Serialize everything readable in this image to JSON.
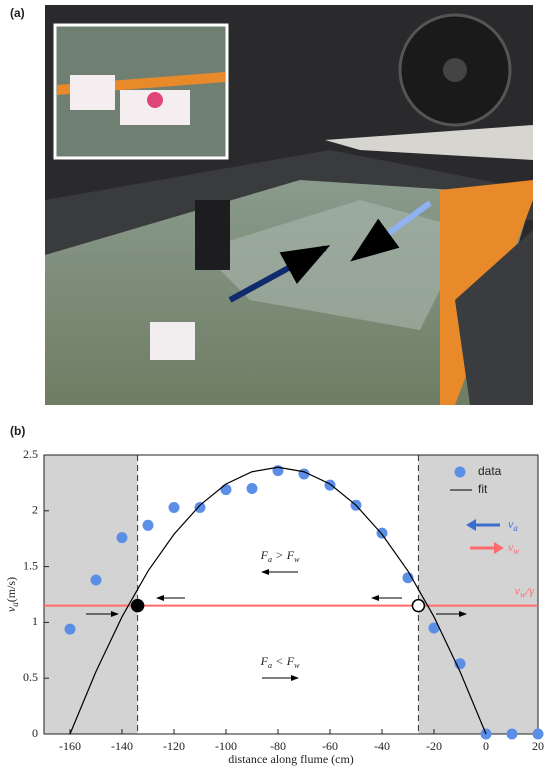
{
  "panel_labels": [
    "(a)",
    "(b)"
  ],
  "chart_data": {
    "type": "scatter",
    "x_label": "distance along flume (cm)",
    "y_label": {
      "symbol": "v",
      "sub": "a",
      "unit": "(m/s)"
    },
    "xlim": [
      -170,
      20
    ],
    "xticks": [
      -160,
      -140,
      -120,
      -100,
      -80,
      -60,
      -40,
      -20,
      0,
      20
    ],
    "ylim": [
      0,
      2.5
    ],
    "yticks": [
      0,
      0.5,
      1,
      1.5,
      2,
      2.5
    ],
    "series": [
      {
        "name": "data",
        "color": "#5b8fe6",
        "x": [
          -160,
          -150,
          -140,
          -130,
          -120,
          -110,
          -100,
          -90,
          -80,
          -70,
          -60,
          -50,
          -40,
          -30,
          -20,
          -10,
          0,
          10,
          20
        ],
        "values": [
          0.94,
          1.38,
          1.76,
          1.87,
          2.03,
          2.03,
          2.19,
          2.2,
          2.36,
          2.33,
          2.23,
          2.05,
          1.8,
          1.4,
          0.95,
          0.63,
          0,
          0,
          0
        ]
      },
      {
        "name": "fit",
        "color": "#000000",
        "x": [
          -160,
          -150,
          -140,
          -130,
          -120,
          -110,
          -100,
          -90,
          -80,
          -70,
          -60,
          -50,
          -40,
          -30,
          -20,
          -10,
          0
        ],
        "values": [
          0,
          0.56,
          1.05,
          1.46,
          1.79,
          2.05,
          2.24,
          2.35,
          2.39,
          2.35,
          2.24,
          2.05,
          1.79,
          1.46,
          1.05,
          0.56,
          0
        ]
      }
    ],
    "threshold": {
      "value": 1.15,
      "color": "#ff6b6b",
      "symbol": "v",
      "sub": "w",
      "suffix": "/γ"
    },
    "crossings": [
      -134,
      -26
    ],
    "region_labels": [
      {
        "lhs": "F",
        "lhs_sub": "a",
        "op": ">",
        "rhs": "F",
        "rhs_sub": "w"
      },
      {
        "lhs": "F",
        "lhs_sub": "a",
        "op": "<",
        "rhs": "F",
        "rhs_sub": "w"
      }
    ],
    "arrow_legend": [
      {
        "symbol": "v",
        "sub": "a",
        "color": "#3a6fd0"
      },
      {
        "symbol": "v",
        "sub": "w",
        "color": "#ff6b6b"
      }
    ]
  }
}
